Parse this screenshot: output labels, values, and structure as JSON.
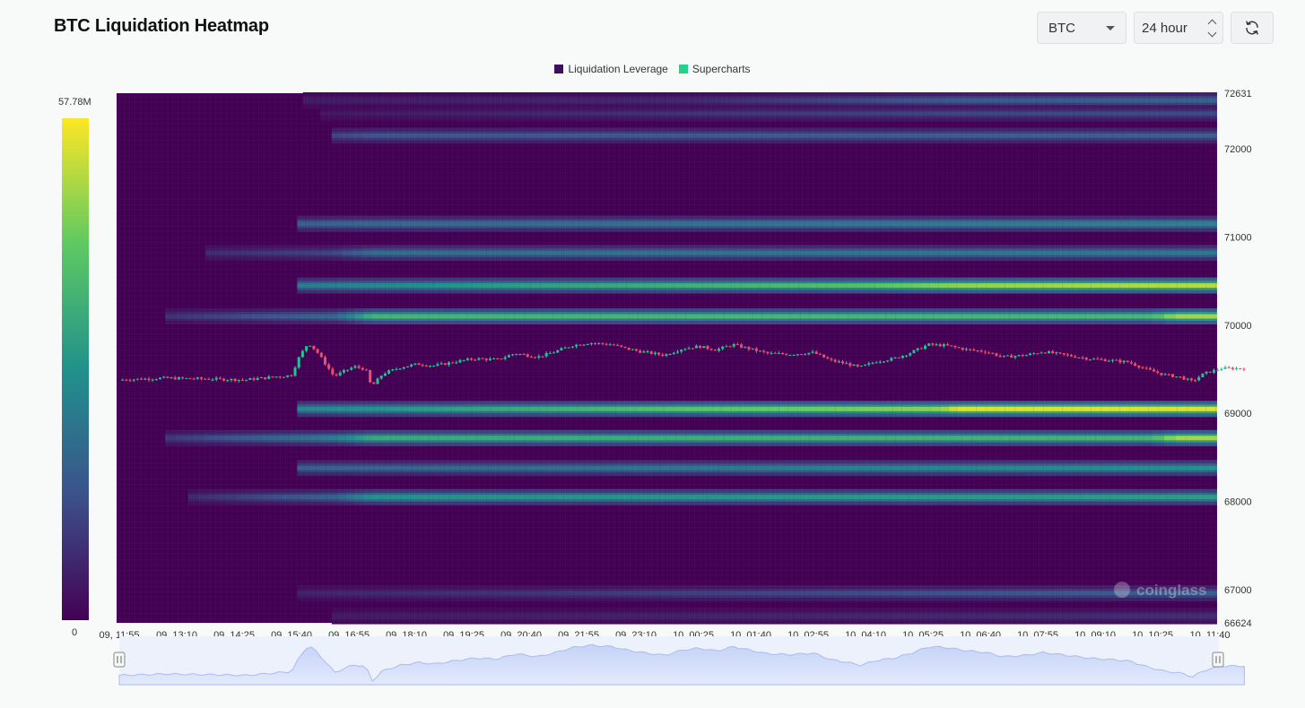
{
  "header": {
    "title": "BTC Liquidation Heatmap",
    "coin_select_value": "BTC",
    "range_select_value": "24 hour",
    "refresh_icon": "refresh-icon",
    "dropdown_icon": "chevron-down-icon",
    "stepper_icon": "updown-stepper-icon"
  },
  "legend": {
    "items": [
      {
        "label": "Liquidation Leverage",
        "color": "#3d0f5e"
      },
      {
        "label": "Supercharts",
        "color": "#1fd38b"
      }
    ]
  },
  "colorbar": {
    "max_label": "57.78M",
    "min_label": "0",
    "max_value": 57780000,
    "min_value": 0
  },
  "watermark": {
    "text": "coinglass"
  },
  "chart_data": {
    "type": "heatmap",
    "title": "BTC Liquidation Heatmap",
    "xlabel": "",
    "ylabel": "",
    "ylim": [
      66624,
      72631
    ],
    "y_ticks": [
      72631,
      72000,
      71000,
      70000,
      69000,
      68000,
      67000,
      66624
    ],
    "x_ticks": [
      "09, 11:55",
      "09, 13:10",
      "09, 14:25",
      "09, 15:40",
      "09, 16:55",
      "09, 18:10",
      "09, 19:25",
      "09, 20:40",
      "09, 21:55",
      "09, 23:10",
      "10, 00:25",
      "10, 01:40",
      "10, 02:55",
      "10, 04:10",
      "10, 05:25",
      "10, 06:40",
      "10, 07:55",
      "10, 09:10",
      "10, 10:25",
      "10, 11:40"
    ],
    "color_scale": [
      "#440154",
      "#3b528b",
      "#21918c",
      "#5ec962",
      "#fde725"
    ],
    "liquidation_bands": [
      {
        "price": 72550,
        "start_tick": 3.2,
        "strength": [
          [
            3.2,
            0.08
          ],
          [
            10,
            0.12
          ],
          [
            14.5,
            0.28
          ],
          [
            19.6,
            0.32
          ]
        ]
      },
      {
        "price": 72400,
        "start_tick": 3.5,
        "strength": [
          [
            3.5,
            0.06
          ],
          [
            14.5,
            0.2
          ],
          [
            19.6,
            0.22
          ]
        ]
      },
      {
        "price": 72150,
        "start_tick": 3.7,
        "strength": [
          [
            3.7,
            0.2
          ],
          [
            4.4,
            0.26
          ],
          [
            16,
            0.3
          ],
          [
            19.6,
            0.3
          ]
        ]
      },
      {
        "price": 71150,
        "start_tick": 3.1,
        "strength": [
          [
            3.1,
            0.3
          ],
          [
            4.4,
            0.34
          ],
          [
            14.6,
            0.42
          ],
          [
            19.6,
            0.45
          ]
        ]
      },
      {
        "price": 70820,
        "start_tick": 1.5,
        "strength": [
          [
            1.5,
            0.12
          ],
          [
            3.7,
            0.2
          ],
          [
            4.4,
            0.35
          ],
          [
            19.6,
            0.4
          ]
        ]
      },
      {
        "price": 70450,
        "start_tick": 3.1,
        "strength": [
          [
            3.1,
            0.4
          ],
          [
            7,
            0.55
          ],
          [
            13,
            0.7
          ],
          [
            14.6,
            0.82
          ],
          [
            19.6,
            0.9
          ]
        ]
      },
      {
        "price": 70100,
        "start_tick": 0.8,
        "strength": [
          [
            0.8,
            0.14
          ],
          [
            3.8,
            0.34
          ],
          [
            4.4,
            0.65
          ],
          [
            18,
            0.66
          ],
          [
            18.4,
            0.85
          ],
          [
            19.6,
            0.85
          ]
        ]
      },
      {
        "price": 69050,
        "start_tick": 3.1,
        "strength": [
          [
            3.1,
            0.45
          ],
          [
            10,
            0.72
          ],
          [
            14.3,
            0.82
          ],
          [
            14.6,
            0.95
          ],
          [
            19.6,
            0.95
          ]
        ]
      },
      {
        "price": 68720,
        "start_tick": 0.8,
        "strength": [
          [
            0.8,
            0.16
          ],
          [
            3.8,
            0.42
          ],
          [
            4.4,
            0.6
          ],
          [
            18,
            0.65
          ],
          [
            18.4,
            0.86
          ],
          [
            19.6,
            0.86
          ]
        ]
      },
      {
        "price": 68380,
        "start_tick": 3.1,
        "strength": [
          [
            3.1,
            0.3
          ],
          [
            14.6,
            0.45
          ],
          [
            19.6,
            0.5
          ]
        ]
      },
      {
        "price": 68050,
        "start_tick": 1.2,
        "strength": [
          [
            1.2,
            0.12
          ],
          [
            3.8,
            0.32
          ],
          [
            4.4,
            0.5
          ],
          [
            19.6,
            0.55
          ]
        ]
      },
      {
        "price": 66960,
        "start_tick": 3.1,
        "strength": [
          [
            3.1,
            0.1
          ],
          [
            14.6,
            0.25
          ],
          [
            19.6,
            0.3
          ]
        ]
      },
      {
        "price": 66700,
        "start_tick": 3.7,
        "strength": [
          [
            3.7,
            0.08
          ],
          [
            14.6,
            0.12
          ],
          [
            19.6,
            0.14
          ]
        ]
      }
    ],
    "price_series": [
      [
        0.0,
        69380
      ],
      [
        0.8,
        69400
      ],
      [
        1.6,
        69390
      ],
      [
        2.2,
        69380
      ],
      [
        2.8,
        69420
      ],
      [
        3.0,
        69430
      ],
      [
        3.15,
        69650
      ],
      [
        3.3,
        69800
      ],
      [
        3.45,
        69700
      ],
      [
        3.6,
        69560
      ],
      [
        3.75,
        69420
      ],
      [
        3.9,
        69470
      ],
      [
        4.1,
        69530
      ],
      [
        4.3,
        69500
      ],
      [
        4.4,
        69300
      ],
      [
        4.6,
        69450
      ],
      [
        4.9,
        69520
      ],
      [
        5.2,
        69560
      ],
      [
        5.5,
        69540
      ],
      [
        5.9,
        69590
      ],
      [
        6.2,
        69620
      ],
      [
        6.6,
        69610
      ],
      [
        6.9,
        69680
      ],
      [
        7.3,
        69640
      ],
      [
        7.6,
        69700
      ],
      [
        7.9,
        69770
      ],
      [
        8.2,
        69800
      ],
      [
        8.6,
        69780
      ],
      [
        8.8,
        69740
      ],
      [
        9.1,
        69700
      ],
      [
        9.5,
        69660
      ],
      [
        9.8,
        69730
      ],
      [
        10.1,
        69760
      ],
      [
        10.4,
        69720
      ],
      [
        10.7,
        69780
      ],
      [
        11.0,
        69730
      ],
      [
        11.3,
        69680
      ],
      [
        11.7,
        69670
      ],
      [
        12.1,
        69690
      ],
      [
        12.4,
        69600
      ],
      [
        12.7,
        69560
      ],
      [
        12.9,
        69520
      ],
      [
        13.2,
        69590
      ],
      [
        13.5,
        69620
      ],
      [
        13.8,
        69690
      ],
      [
        14.1,
        69780
      ],
      [
        14.4,
        69770
      ],
      [
        14.8,
        69720
      ],
      [
        15.1,
        69700
      ],
      [
        15.4,
        69640
      ],
      [
        15.8,
        69660
      ],
      [
        16.1,
        69700
      ],
      [
        16.5,
        69660
      ],
      [
        16.9,
        69620
      ],
      [
        17.3,
        69600
      ],
      [
        17.6,
        69580
      ],
      [
        17.9,
        69500
      ],
      [
        18.2,
        69440
      ],
      [
        18.5,
        69410
      ],
      [
        18.7,
        69360
      ],
      [
        18.9,
        69450
      ],
      [
        19.2,
        69510
      ],
      [
        19.6,
        69510
      ]
    ]
  }
}
